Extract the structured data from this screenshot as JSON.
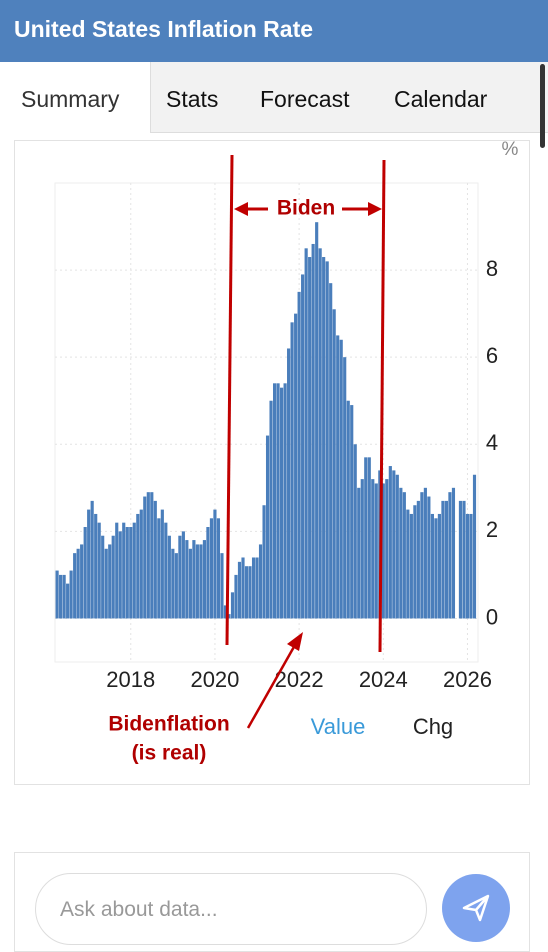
{
  "header": {
    "title": "United States Inflation Rate"
  },
  "tabs": [
    "Summary",
    "Stats",
    "Forecast",
    "Calendar"
  ],
  "chart_data": {
    "type": "bar",
    "unit": "%",
    "color": "#4a7ebb",
    "grid": true,
    "x": [
      2016.25,
      2016.333,
      2016.417,
      2016.5,
      2016.583,
      2016.667,
      2016.75,
      2016.833,
      2016.917,
      2017,
      2017.083,
      2017.167,
      2017.25,
      2017.333,
      2017.417,
      2017.5,
      2017.583,
      2017.667,
      2017.75,
      2017.833,
      2017.917,
      2018,
      2018.083,
      2018.167,
      2018.25,
      2018.333,
      2018.417,
      2018.5,
      2018.583,
      2018.667,
      2018.75,
      2018.833,
      2018.917,
      2019,
      2019.083,
      2019.167,
      2019.25,
      2019.333,
      2019.417,
      2019.5,
      2019.583,
      2019.667,
      2019.75,
      2019.833,
      2019.917,
      2020,
      2020.083,
      2020.167,
      2020.25,
      2020.333,
      2020.417,
      2020.5,
      2020.583,
      2020.667,
      2020.75,
      2020.833,
      2020.917,
      2021,
      2021.083,
      2021.167,
      2021.25,
      2021.333,
      2021.417,
      2021.5,
      2021.583,
      2021.667,
      2021.75,
      2021.833,
      2021.917,
      2022,
      2022.083,
      2022.167,
      2022.25,
      2022.333,
      2022.417,
      2022.5,
      2022.583,
      2022.667,
      2022.75,
      2022.833,
      2022.917,
      2023,
      2023.083,
      2023.167,
      2023.25,
      2023.333,
      2023.417,
      2023.5,
      2023.583,
      2023.667,
      2023.75,
      2023.833,
      2023.917,
      2024,
      2024.083,
      2024.167,
      2024.25,
      2024.333,
      2024.417,
      2024.5,
      2024.583,
      2024.667,
      2024.75,
      2024.833,
      2024.917,
      2025,
      2025.083,
      2025.167,
      2025.25,
      2025.333,
      2025.417,
      2025.5,
      2025.583,
      2025.667,
      2025.75,
      2025.833,
      2025.917,
      2026,
      2026.083,
      2026.167
    ],
    "values": [
      1.1,
      1.0,
      1.0,
      0.8,
      1.1,
      1.5,
      1.6,
      1.7,
      2.1,
      2.5,
      2.7,
      2.4,
      2.2,
      1.9,
      1.6,
      1.7,
      1.9,
      2.2,
      2.0,
      2.2,
      2.1,
      2.1,
      2.2,
      2.4,
      2.5,
      2.8,
      2.9,
      2.9,
      2.7,
      2.3,
      2.5,
      2.2,
      1.9,
      1.6,
      1.5,
      1.9,
      2.0,
      1.8,
      1.6,
      1.8,
      1.7,
      1.7,
      1.8,
      2.1,
      2.3,
      2.5,
      2.3,
      1.5,
      0.3,
      0.1,
      0.6,
      1.0,
      1.3,
      1.4,
      1.2,
      1.2,
      1.4,
      1.4,
      1.7,
      2.6,
      4.2,
      5.0,
      5.4,
      5.4,
      5.3,
      5.4,
      6.2,
      6.8,
      7.0,
      7.5,
      7.9,
      8.5,
      8.3,
      8.6,
      9.1,
      8.5,
      8.3,
      8.2,
      7.7,
      7.1,
      6.5,
      6.4,
      6.0,
      5.0,
      4.9,
      4.0,
      3.0,
      3.2,
      3.7,
      3.7,
      3.2,
      3.1,
      3.4,
      3.1,
      3.2,
      3.5,
      3.4,
      3.3,
      3.0,
      2.9,
      2.5,
      2.4,
      2.6,
      2.7,
      2.9,
      3.0,
      2.8,
      2.4,
      2.3,
      2.4,
      2.7,
      2.7,
      2.9,
      3.0,
      null,
      2.7,
      2.7,
      2.4,
      2.4,
      3.3
    ],
    "xlim": [
      2016.2,
      2026.25
    ],
    "xticks": [
      2018,
      2020,
      2022,
      2024,
      2026
    ],
    "ylim": [
      -1,
      10
    ],
    "yticks": [
      0,
      2,
      4,
      6,
      8
    ],
    "annotations": [
      "Biden",
      "Bidenflation",
      "(is real)"
    ]
  },
  "toggle": [
    "Value",
    "Chg"
  ],
  "input": {
    "placeholder": "Ask about data..."
  }
}
